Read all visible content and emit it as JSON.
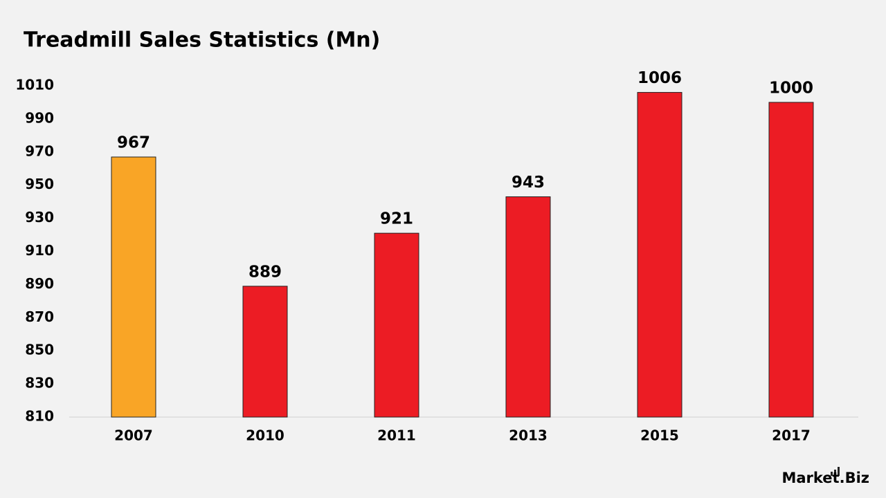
{
  "chart_data": {
    "type": "bar",
    "title": "Treadmill Sales Statistics (Mn)",
    "categories": [
      "2007",
      "2010",
      "2011",
      "2013",
      "2015",
      "2017"
    ],
    "values": [
      967,
      889,
      921,
      943,
      1006,
      1000
    ],
    "colors": [
      "#f9a526",
      "#ec1c24",
      "#ec1c24",
      "#ec1c24",
      "#ec1c24",
      "#ec1c24"
    ],
    "ylim": [
      810,
      1010
    ],
    "yticks": [
      810,
      830,
      850,
      870,
      890,
      910,
      930,
      950,
      970,
      990,
      1010
    ],
    "grid": false,
    "data_labels": true
  },
  "watermark": "Market.Biz"
}
